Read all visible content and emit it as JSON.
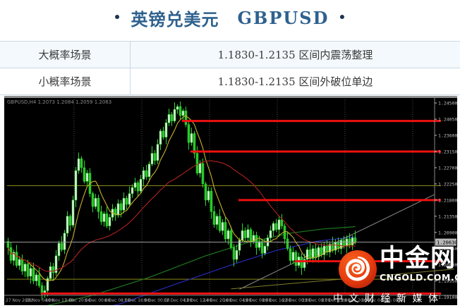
{
  "colors": {
    "title-color": "#2e618e",
    "bullet-color": "#1f3350",
    "tbl-border": "#ccd9e6",
    "tbl-text": "#3a3a3a",
    "row-alt": "#f3f9fc"
  },
  "header": {
    "bullet_left": "•",
    "title_cn": "英镑兑美元",
    "title_en": "GBPUSD",
    "bullet_right": "•"
  },
  "scenarios": {
    "rows": [
      {
        "label": "大概率场景",
        "value": "1.1830-1.2135 区间内震荡整理"
      },
      {
        "label": "小概率场景",
        "value": "1.1830-1.2135 区间外破位单边"
      }
    ]
  },
  "watermark": {
    "brand": "中金网",
    "domain": "CNGOLD.COM.CN",
    "tagline": "中文财经新媒体",
    "logo_color": "#e83c0e"
  },
  "chart_data": {
    "type": "candlestick",
    "symbol_header": "GBPUSD,H4 1.2073 1.2084 1.2059 1.2063",
    "timeframe": "H4",
    "colors": {
      "bg": "#000000",
      "top_strip": "#8f8f8f",
      "grid": "#4a4a4a",
      "axis_line": "#888888",
      "axis_text": "#c0c0c0",
      "time_text": "#a8a8a8",
      "header_text": "#8c8c8c",
      "wick": "#2fd32f",
      "bull_fill": "#d8f0d8",
      "bear_fill": "#28c828",
      "candle_stroke": "#2fd32f",
      "red_level": "#ee1111",
      "olive_level": "#8a8a1a",
      "bid_line": "#9a9a9a",
      "bid_tag_bg": "#b8b8b8",
      "bid_tag_text": "#000000",
      "ma_fast": "#c8b02e",
      "ma_slow": "#b22222",
      "ma_long_green": "#1d7a1d",
      "ma_long_blue": "#2828b8",
      "trend_gray": "#8c8c8c",
      "trend_olive": "#7e7e2e"
    },
    "y_axis": {
      "min": 1.1919,
      "max": 1.246,
      "tick_step": 0.0045,
      "ticks": [
        1.245,
        1.2405,
        1.236,
        1.2315,
        1.227,
        1.2225,
        1.218,
        1.2135,
        1.209,
        1.2045,
        1.2,
        1.1955,
        1.191
      ],
      "decimals": 5
    },
    "x_ticks": [
      "27 Nov 2022",
      "29 Nov 04:00",
      "30 Nov 12:00",
      "1 Dec 20:00",
      "5 Dec 00:00",
      "6 Dec 08:00",
      "7 Dec 16:00",
      "9 Dec 00:00",
      "12 Dec 04:00",
      "13 Dec 12:00",
      "14 Dec 20:00",
      "16 Dec 04:00",
      "19 Dec 08:00",
      "20 Dec 16:00",
      "22 Dec 00:00",
      "23 Dec 08:00",
      "27 Dec 12:00",
      "28 Dec 20:00",
      "30 Dec 04:00",
      "3 Jan 08:00"
    ],
    "current_price": {
      "value": 1.2063,
      "label": "1.20630"
    },
    "h_lines": [
      {
        "price": 1.24,
        "from_bar": 62,
        "style": "red"
      },
      {
        "price": 1.2315,
        "from_bar": 65,
        "style": "red"
      },
      {
        "price": 1.218,
        "from_bar": 82,
        "style": "red"
      },
      {
        "price": 1.201,
        "from_bar": 102,
        "style": "red"
      },
      {
        "price": 1.192,
        "from_bar": 12,
        "style": "red"
      },
      {
        "price": 1.222,
        "from_bar": 0,
        "style": "olive"
      },
      {
        "price": 1.196,
        "from_bar": 0,
        "style": "olive"
      }
    ],
    "long_ma": [
      {
        "color_key": "ma_long_green",
        "points": [
          [
            10,
            1.188
          ],
          [
            30,
            1.1915
          ],
          [
            50,
            1.1965
          ],
          [
            70,
            1.2025
          ],
          [
            85,
            1.2062
          ],
          [
            100,
            1.2088
          ],
          [
            112,
            1.21
          ],
          [
            123,
            1.2106
          ]
        ]
      },
      {
        "color_key": "ma_long_blue",
        "points": [
          [
            22,
            1.1858
          ],
          [
            40,
            1.1892
          ],
          [
            60,
            1.1948
          ],
          [
            80,
            1.2002
          ],
          [
            95,
            1.204
          ],
          [
            110,
            1.2066
          ],
          [
            123,
            1.2078
          ]
        ]
      }
    ],
    "trendlines": [
      {
        "color_key": "trend_gray",
        "points": [
          [
            82,
            1.1932
          ],
          [
            151,
            1.2195
          ]
        ]
      },
      {
        "color_key": "trend_olive",
        "points": [
          [
            79,
            1.1933
          ],
          [
            158,
            1.1988
          ]
        ]
      }
    ],
    "ma_fast_period": 8,
    "ma_slow_period": 34,
    "candles": {
      "first_open": 1.2065,
      "wicks": [
        10,
        16,
        7,
        20,
        9,
        14,
        6,
        12
      ],
      "overrides": {
        "12": {
          "l": 1.1902
        },
        "25": {
          "h": 1.2312
        },
        "60": {
          "h": 1.2446
        }
      },
      "closes": [
        1.2048,
        1.2012,
        1.2035,
        1.1998,
        1.2015,
        1.1982,
        1.2002,
        1.1968,
        1.199,
        1.1955,
        1.1972,
        1.1942,
        1.1918,
        1.1928,
        1.1962,
        1.1995,
        1.1978,
        1.2025,
        1.206,
        1.2042,
        1.2088,
        1.2135,
        1.211,
        1.218,
        1.2262,
        1.2295,
        1.227,
        1.2232,
        1.2255,
        1.2198,
        1.2162,
        1.2185,
        1.2148,
        1.212,
        1.2142,
        1.2108,
        1.2132,
        1.2155,
        1.2138,
        1.217,
        1.2152,
        1.2185,
        1.2168,
        1.2198,
        1.2215,
        1.2228,
        1.2205,
        1.2238,
        1.2262,
        1.2245,
        1.228,
        1.231,
        1.229,
        1.2335,
        1.2372,
        1.2355,
        1.2395,
        1.2418,
        1.24,
        1.2432,
        1.244,
        1.2415,
        1.2428,
        1.239,
        1.234,
        1.2365,
        1.231,
        1.2255,
        1.2282,
        1.2225,
        1.218,
        1.2205,
        1.2148,
        1.2112,
        1.2135,
        1.2095,
        1.2118,
        1.2072,
        1.2095,
        1.2048,
        1.2015,
        1.204,
        1.2068,
        1.2095,
        1.2075,
        1.2098,
        1.2065,
        1.2082,
        1.2048,
        1.2065,
        1.2032,
        1.2052,
        1.2075,
        1.2095,
        1.2115,
        1.2098,
        1.2125,
        1.2108,
        1.2072,
        1.2045,
        1.2012,
        1.2035,
        1.1998,
        1.2022,
        1.1992,
        1.2015,
        1.2042,
        1.2018,
        1.2045,
        1.2022,
        1.2048,
        1.2028,
        1.2052,
        1.2035,
        1.2058,
        1.204,
        1.2062,
        1.2045,
        1.2068,
        1.2052,
        1.2072,
        1.2055,
        1.2075,
        1.2063
      ]
    }
  }
}
